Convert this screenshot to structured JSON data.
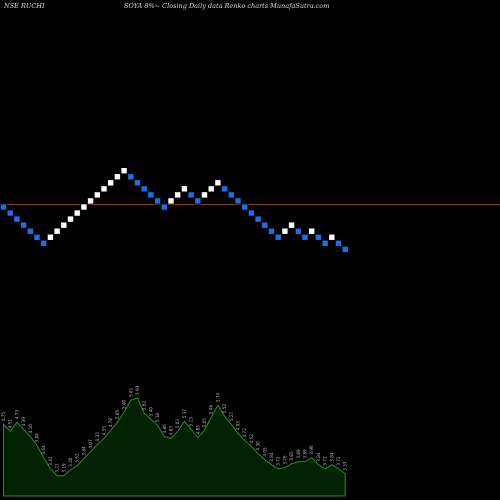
{
  "header": {
    "left": "NSE RUCHI",
    "right": "SOYA 8%~  Closing Daily data  Renko  charts MunafaSutra.com"
  },
  "colors": {
    "background": "#000000",
    "up_brick": "#ffffff",
    "down_brick": "#1e6fe6",
    "reference_line": "#8b4513",
    "volume_fill": "#002200",
    "volume_stroke": "#2e8b2e",
    "volume_label": "#bbbbbb"
  },
  "chart_data": [
    {
      "type": "renko",
      "direction": [
        "down",
        "down",
        "down",
        "down",
        "down",
        "down",
        "down",
        "up",
        "up",
        "up",
        "up",
        "up",
        "up",
        "up",
        "up",
        "up",
        "up",
        "up",
        "up",
        "down",
        "down",
        "down",
        "down",
        "down",
        "down",
        "up",
        "up",
        "up",
        "down",
        "down",
        "up",
        "up",
        "up",
        "down",
        "down",
        "down",
        "down",
        "down",
        "down",
        "down",
        "down",
        "down",
        "up",
        "up",
        "down",
        "down",
        "up",
        "down",
        "down",
        "up",
        "down",
        "down"
      ],
      "reference_line": 0.5
    },
    {
      "type": "area",
      "name": "volume",
      "values": [
        0.71,
        0.64,
        0.73,
        0.66,
        0.59,
        0.5,
        0.38,
        0.27,
        0.2,
        0.2,
        0.26,
        0.3,
        0.37,
        0.44,
        0.51,
        0.57,
        0.65,
        0.73,
        0.83,
        0.95,
        0.97,
        0.82,
        0.76,
        0.7,
        0.59,
        0.57,
        0.64,
        0.74,
        0.66,
        0.58,
        0.65,
        0.78,
        0.9,
        0.79,
        0.71,
        0.62,
        0.55,
        0.49,
        0.42,
        0.36,
        0.31,
        0.27,
        0.28,
        0.32,
        0.34,
        0.34,
        0.38,
        0.31,
        0.27,
        0.31,
        0.27,
        0.22
      ],
      "labels": [
        "4.75",
        "4.51",
        "4.73",
        "4.39",
        "4.10",
        "3.84",
        "3.64",
        "3.42",
        "3.21",
        "3.19",
        "3.40",
        "3.62",
        "3.84",
        "4.07",
        "4.33",
        "4.55",
        "4.78",
        "5.05",
        "5.40",
        "5.81",
        "5.93",
        "5.62",
        "5.40",
        "5.18",
        "4.86",
        "4.83",
        "5.03",
        "5.37",
        "5.13",
        "4.85",
        "5.05",
        "5.48",
        "5.74",
        "5.52",
        "5.27",
        "4.93",
        "4.72",
        "4.52",
        "4.30",
        "4.05",
        "3.84",
        "3.72",
        "3.76",
        "3.85",
        "3.89",
        "3.89",
        "3.96",
        "3.84",
        "3.72",
        "3.84",
        "3.72",
        "3.53"
      ]
    }
  ]
}
